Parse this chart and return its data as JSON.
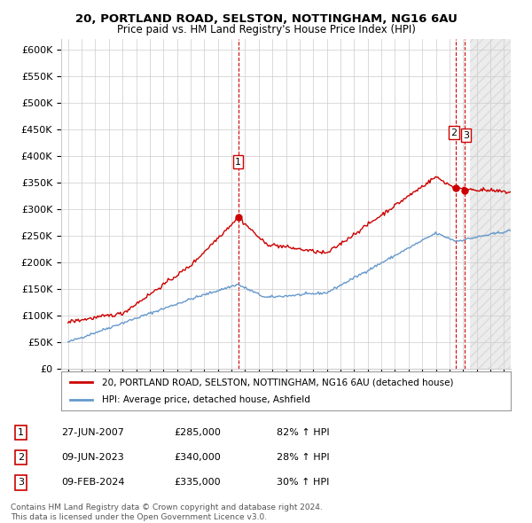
{
  "title_line1": "20, PORTLAND ROAD, SELSTON, NOTTINGHAM, NG16 6AU",
  "title_line2": "Price paid vs. HM Land Registry's House Price Index (HPI)",
  "ylabel_ticks": [
    "£0",
    "£50K",
    "£100K",
    "£150K",
    "£200K",
    "£250K",
    "£300K",
    "£350K",
    "£400K",
    "£450K",
    "£500K",
    "£550K",
    "£600K"
  ],
  "ytick_values": [
    0,
    50000,
    100000,
    150000,
    200000,
    250000,
    300000,
    350000,
    400000,
    450000,
    500000,
    550000,
    600000
  ],
  "xmin": 1994.5,
  "xmax": 2027.5,
  "ymin": 0,
  "ymax": 620000,
  "sale_color": "#cc0000",
  "hpi_color": "#6699cc",
  "vline_color": "#cc0000",
  "legend_label_sale": "20, PORTLAND ROAD, SELSTON, NOTTINGHAM, NG16 6AU (detached house)",
  "legend_label_hpi": "HPI: Average price, detached house, Ashfield",
  "transaction1_date": "27-JUN-2007",
  "transaction1_price": 285000,
  "transaction1_pct": "82% ↑ HPI",
  "transaction1_x": 2007.49,
  "transaction2_date": "09-JUN-2023",
  "transaction2_price": 340000,
  "transaction2_pct": "28% ↑ HPI",
  "transaction2_x": 2023.44,
  "transaction3_date": "09-FEB-2024",
  "transaction3_price": 335000,
  "transaction3_pct": "30% ↑ HPI",
  "transaction3_x": 2024.12,
  "footer_line1": "Contains HM Land Registry data © Crown copyright and database right 2024.",
  "footer_line2": "This data is licensed under the Open Government Licence v3.0.",
  "background_color": "#ffffff",
  "grid_color": "#cccccc",
  "hatch_color": "#dddddd"
}
